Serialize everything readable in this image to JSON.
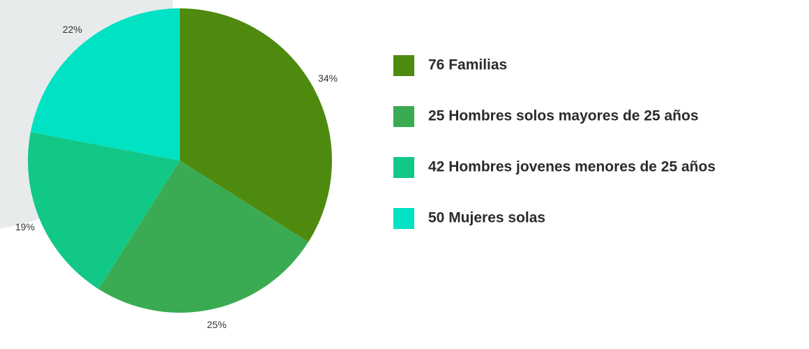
{
  "chart_data": {
    "type": "pie",
    "categories": [
      "76 Familias",
      "25 Hombres solos mayores de 25 años",
      "42 Hombres jovenes menores de 25 años",
      "50 Mujeres solas"
    ],
    "values": [
      34,
      25,
      19,
      22
    ],
    "value_labels": [
      "34%",
      "25%",
      "19%",
      "22%"
    ],
    "colors": [
      "#4e8a0e",
      "#3aab52",
      "#12c886",
      "#00e2c4"
    ]
  }
}
